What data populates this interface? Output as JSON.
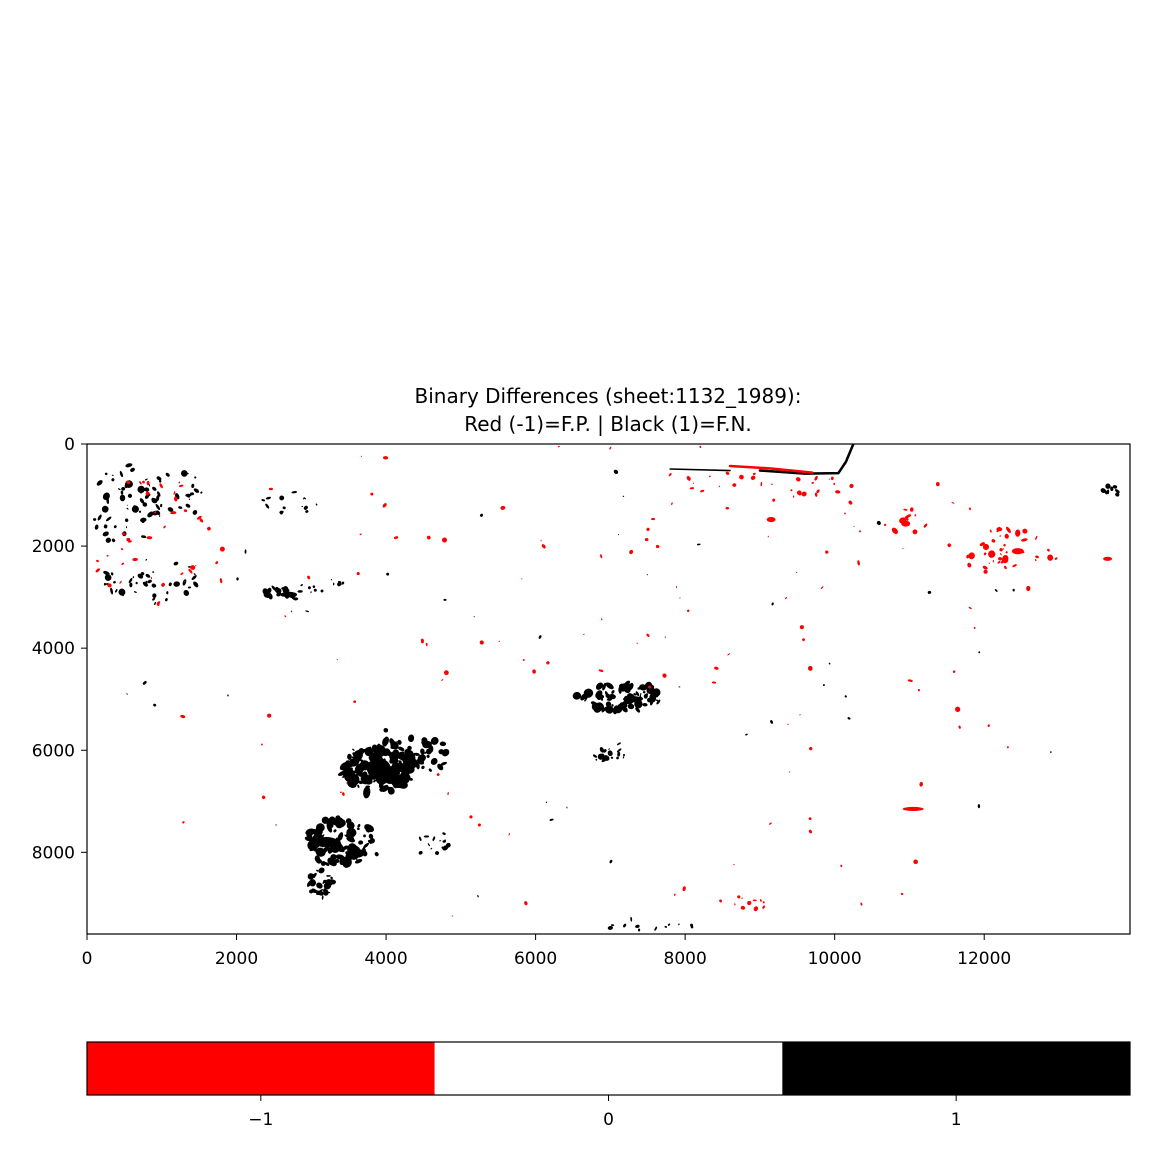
{
  "chart_data": {
    "type": "heatmap",
    "title": "Binary Differences (sheet:1132_1989):",
    "subtitle": "Red (-1)=F.P. | Black (1)=F.N.",
    "xlabel": "",
    "ylabel": "",
    "xlim": [
      0,
      13950
    ],
    "ylim": [
      9600,
      0
    ],
    "x_ticks": [
      0,
      2000,
      4000,
      6000,
      8000,
      10000,
      12000
    ],
    "y_ticks": [
      0,
      2000,
      4000,
      6000,
      8000
    ],
    "x_tick_labels": [
      "0",
      "2000",
      "4000",
      "6000",
      "8000",
      "10000",
      "12000"
    ],
    "y_tick_labels": [
      "0",
      "2000",
      "4000",
      "6000",
      "8000"
    ],
    "grid": false,
    "colorbar": {
      "orientation": "horizontal",
      "placement": "bottom",
      "categories": [
        -1,
        0,
        1
      ],
      "tick_labels": [
        "−1",
        "0",
        "1"
      ],
      "colors": [
        "#ff0000",
        "#ffffff",
        "#000000"
      ]
    },
    "colors": {
      "false_positive": "#ff0000",
      "false_negative": "#000000",
      "background": "#ffffff"
    },
    "clusters": [
      {
        "v": 1,
        "x": 500,
        "y": 1200,
        "rx": 450,
        "ry": 800,
        "n": 45,
        "s": 60
      },
      {
        "v": 1,
        "x": 1100,
        "y": 1000,
        "rx": 550,
        "ry": 500,
        "n": 35,
        "s": 50
      },
      {
        "v": 1,
        "x": 900,
        "y": 2700,
        "rx": 700,
        "ry": 450,
        "n": 40,
        "s": 55
      },
      {
        "v": -1,
        "x": 900,
        "y": 1900,
        "rx": 850,
        "ry": 1300,
        "n": 35,
        "s": 45
      },
      {
        "v": 1,
        "x": 2700,
        "y": 1150,
        "rx": 400,
        "ry": 250,
        "n": 14,
        "s": 45
      },
      {
        "v": 1,
        "x": 2600,
        "y": 2950,
        "rx": 300,
        "ry": 130,
        "n": 22,
        "s": 60
      },
      {
        "v": 1,
        "x": 3200,
        "y": 2800,
        "rx": 350,
        "ry": 150,
        "n": 12,
        "s": 40
      },
      {
        "v": 1,
        "x": 3900,
        "y": 6400,
        "rx": 500,
        "ry": 450,
        "n": 140,
        "s": 95
      },
      {
        "v": 1,
        "x": 4350,
        "y": 6100,
        "rx": 500,
        "ry": 400,
        "n": 60,
        "s": 70
      },
      {
        "v": 1,
        "x": 3400,
        "y": 7800,
        "rx": 450,
        "ry": 500,
        "n": 90,
        "s": 85
      },
      {
        "v": 1,
        "x": 3100,
        "y": 8600,
        "rx": 200,
        "ry": 300,
        "n": 30,
        "s": 55
      },
      {
        "v": 1,
        "x": 4600,
        "y": 7800,
        "rx": 250,
        "ry": 250,
        "n": 14,
        "s": 50
      },
      {
        "v": 1,
        "x": 7150,
        "y": 4950,
        "rx": 600,
        "ry": 280,
        "n": 90,
        "s": 70
      },
      {
        "v": 1,
        "x": 6950,
        "y": 6100,
        "rx": 250,
        "ry": 140,
        "n": 18,
        "s": 50
      },
      {
        "v": 1,
        "x": 13700,
        "y": 900,
        "rx": 130,
        "ry": 130,
        "n": 10,
        "s": 45
      },
      {
        "v": -1,
        "x": 12300,
        "y": 2100,
        "rx": 700,
        "ry": 450,
        "n": 40,
        "s": 55
      },
      {
        "v": -1,
        "x": 10950,
        "y": 1500,
        "rx": 300,
        "ry": 250,
        "n": 10,
        "s": 60
      },
      {
        "v": -1,
        "x": 9050,
        "y": 800,
        "rx": 1200,
        "ry": 300,
        "n": 30,
        "s": 40
      },
      {
        "v": 1,
        "x": 7500,
        "y": 9450,
        "rx": 600,
        "ry": 150,
        "n": 12,
        "s": 40
      },
      {
        "v": -1,
        "x": 8800,
        "y": 9000,
        "rx": 500,
        "ry": 150,
        "n": 10,
        "s": 40
      },
      {
        "v": -1,
        "x": 6800,
        "y": 2300,
        "rx": 6000,
        "ry": 2500,
        "n": 70,
        "s": 40
      },
      {
        "v": -1,
        "x": 7000,
        "y": 6500,
        "rx": 6500,
        "ry": 3000,
        "n": 55,
        "s": 40
      },
      {
        "v": 1,
        "x": 7000,
        "y": 5000,
        "rx": 6500,
        "ry": 4500,
        "n": 45,
        "s": 35
      }
    ],
    "blobs": [
      {
        "v": -1,
        "x": 11050,
        "y": 7150,
        "w": 280,
        "h": 80
      },
      {
        "v": -1,
        "x": 9150,
        "y": 1480,
        "w": 120,
        "h": 100
      },
      {
        "v": -1,
        "x": 10950,
        "y": 1560,
        "w": 120,
        "h": 120
      },
      {
        "v": -1,
        "x": 12450,
        "y": 2100,
        "w": 160,
        "h": 120
      },
      {
        "v": -1,
        "x": 13650,
        "y": 2250,
        "w": 120,
        "h": 80
      },
      {
        "v": 1,
        "x": 3900,
        "y": 6350,
        "w": 320,
        "h": 380
      },
      {
        "v": 1,
        "x": 3200,
        "y": 7800,
        "w": 320,
        "h": 200
      },
      {
        "v": 1,
        "x": 7300,
        "y": 5000,
        "w": 260,
        "h": 120
      },
      {
        "v": 1,
        "x": 2700,
        "y": 2950,
        "w": 220,
        "h": 110
      }
    ],
    "strokes": [
      {
        "v": 1,
        "pts": [
          [
            10250,
            0
          ],
          [
            10150,
            350
          ],
          [
            10050,
            570
          ],
          [
            9600,
            580
          ],
          [
            9000,
            520
          ]
        ],
        "w": 2.5
      },
      {
        "v": -1,
        "pts": [
          [
            8600,
            430
          ],
          [
            9150,
            480
          ],
          [
            9700,
            560
          ]
        ],
        "w": 2.5
      },
      {
        "v": 1,
        "pts": [
          [
            7800,
            490
          ],
          [
            8600,
            520
          ]
        ],
        "w": 1.6
      }
    ]
  }
}
